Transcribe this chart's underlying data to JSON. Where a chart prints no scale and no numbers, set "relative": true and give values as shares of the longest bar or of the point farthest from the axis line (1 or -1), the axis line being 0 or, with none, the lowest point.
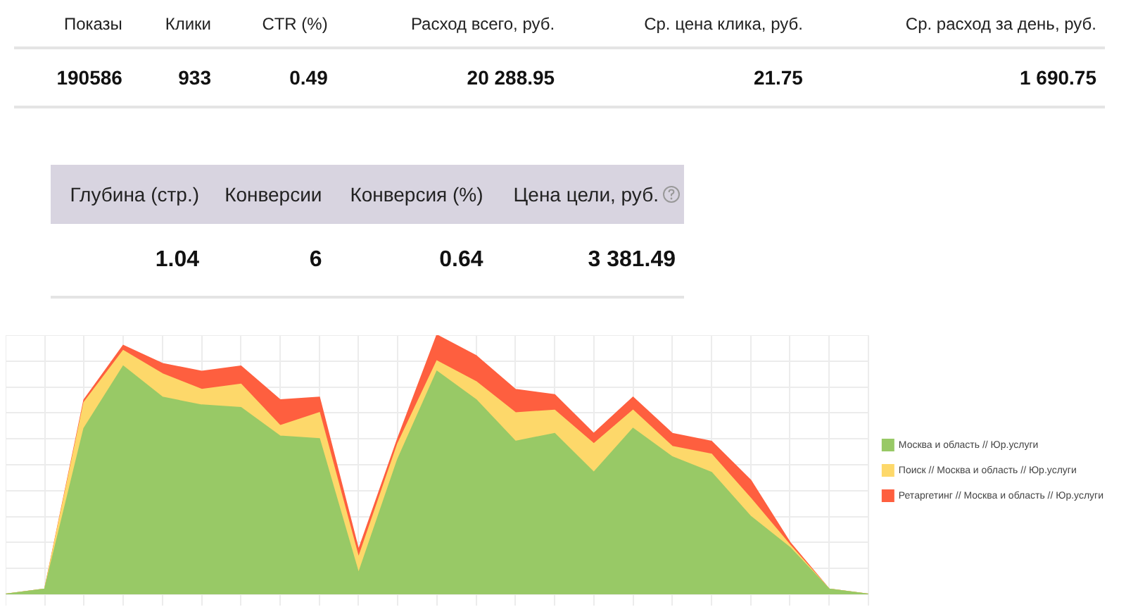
{
  "chart_data": [
    {
      "type": "other",
      "categories": [
        "Показы",
        "Клики",
        "CTR (%)",
        "Расход всего, руб.",
        "Ср. цена клика, руб.",
        "Ср. расход за день, руб."
      ],
      "value_labels": [
        "190586",
        "933",
        "0.49",
        "20 288.95",
        "21.75",
        "1 690.75"
      ]
    },
    {
      "type": "other",
      "categories": [
        "Глубина (стр.)",
        "Конверсии",
        "Конверсия (%)",
        "Цена цели, руб."
      ],
      "value_labels": [
        "1.04",
        "6",
        "0.64",
        "3 381.49"
      ]
    },
    {
      "type": "area",
      "stacked": true,
      "relative": true,
      "grid": true,
      "legend": "right",
      "categories": [
        null,
        null,
        null,
        null,
        null,
        null,
        null,
        null,
        null,
        null,
        null,
        null,
        null,
        null,
        null,
        null,
        null,
        null,
        null,
        null,
        null,
        null,
        null
      ],
      "series": [
        {
          "name": "Москва и область // Юр.услуги",
          "color": "#98c966",
          "values": [
            0,
            0.02,
            0.64,
            0.88,
            0.76,
            0.73,
            0.72,
            0.61,
            0.6,
            0.08,
            0.52,
            0.86,
            0.75,
            0.59,
            0.62,
            0.47,
            0.64,
            0.53,
            0.47,
            0.3,
            0.18,
            0.02,
            0
          ]
        },
        {
          "name": "Поиск // Москва и область // Юр.услуги",
          "color": "#fdd86a",
          "values": [
            0,
            0,
            0.1,
            0.06,
            0.09,
            0.06,
            0.09,
            0.04,
            0.1,
            0.06,
            0.06,
            0.04,
            0.07,
            0.11,
            0.09,
            0.11,
            0.07,
            0.04,
            0.07,
            0.07,
            0.01,
            0,
            0
          ]
        },
        {
          "name": "Ретаргетинг // Москва и область // Юр.услуги",
          "color": "#fe5f3f",
          "values": [
            0,
            0,
            0.01,
            0.02,
            0.04,
            0.07,
            0.07,
            0.1,
            0.06,
            0.03,
            0.02,
            0.1,
            0.1,
            0.09,
            0.06,
            0.04,
            0.05,
            0.05,
            0.05,
            0.07,
            0.01,
            0,
            0
          ]
        }
      ]
    }
  ]
}
